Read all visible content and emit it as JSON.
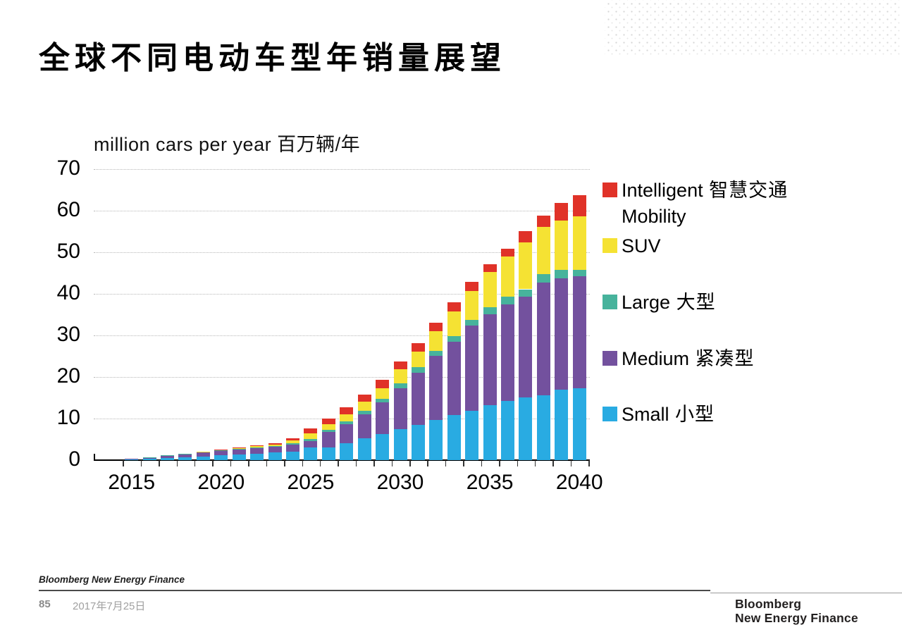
{
  "slide": {
    "title": "全球不同电动车型年销量展望"
  },
  "footer": {
    "brand": "Bloomberg New Energy Finance",
    "page_number": "85",
    "date": "2017年7月25日",
    "logo_line1": "Bloomberg",
    "logo_line2": "New Energy Finance"
  },
  "chart_data": {
    "type": "bar",
    "stacked": true,
    "title": "million cars per year 百万辆/年",
    "xlabel": "",
    "ylabel": "million cars per year 百万辆/年",
    "ylim": [
      0,
      70
    ],
    "ytick_interval": 10,
    "grid": "horizontal-dotted",
    "legend_position": "right",
    "x": [
      2015,
      2016,
      2017,
      2018,
      2019,
      2020,
      2021,
      2022,
      2023,
      2024,
      2025,
      2026,
      2027,
      2028,
      2029,
      2030,
      2031,
      2032,
      2033,
      2034,
      2035,
      2036,
      2037,
      2038,
      2039,
      2040
    ],
    "xticks_labeled": [
      2015,
      2020,
      2025,
      2030,
      2035,
      2040
    ],
    "series": [
      {
        "key": "small",
        "name": "Small 小型",
        "color": "#29ABE2",
        "values": [
          0.2,
          0.3,
          0.5,
          0.7,
          0.9,
          1.2,
          1.3,
          1.5,
          1.8,
          2.0,
          3.0,
          3.1,
          4.0,
          5.3,
          6.2,
          7.4,
          8.5,
          9.7,
          10.8,
          11.9,
          13.3,
          14.2,
          15.1,
          15.6,
          16.9,
          17.3
        ]
      },
      {
        "key": "medium",
        "name": "Medium 紧凑型",
        "color": "#73519E",
        "values": [
          0.2,
          0.35,
          0.6,
          0.8,
          1.0,
          1.0,
          1.2,
          1.4,
          1.4,
          1.7,
          1.6,
          3.65,
          4.6,
          5.7,
          7.7,
          9.9,
          12.6,
          15.4,
          17.7,
          20.4,
          21.8,
          23.3,
          24.2,
          27.1,
          26.9,
          26.9
        ]
      },
      {
        "key": "large",
        "name": "Large 大型",
        "color": "#47B39C",
        "values": [
          0,
          0.05,
          0.1,
          0.1,
          0.1,
          0.15,
          0.2,
          0.2,
          0.2,
          0.3,
          0.5,
          0.55,
          0.7,
          0.8,
          0.8,
          1.1,
          1.2,
          1.2,
          1.4,
          1.4,
          1.7,
          1.8,
          1.8,
          2.0,
          1.9,
          1.6
        ]
      },
      {
        "key": "suv",
        "name": "SUV",
        "color": "#F5E233",
        "values": [
          0,
          0,
          0,
          0,
          0.1,
          0.15,
          0.2,
          0.25,
          0.35,
          0.8,
          1.3,
          1.3,
          1.8,
          2.2,
          2.6,
          3.5,
          3.8,
          4.7,
          5.9,
          7.0,
          8.5,
          9.6,
          11.3,
          11.4,
          11.9,
          12.8
        ]
      },
      {
        "key": "im",
        "name": "Intelligent Mobility 智慧交通",
        "color": "#E03228",
        "values": [
          0,
          0,
          0,
          0,
          0,
          0.1,
          0.1,
          0.15,
          0.25,
          0.5,
          1.3,
          1.4,
          1.6,
          1.7,
          2.0,
          1.9,
          2.0,
          2.0,
          2.1,
          2.1,
          1.8,
          2.0,
          2.7,
          2.7,
          4.3,
          5.1
        ]
      }
    ],
    "legend": [
      {
        "series_key": "im",
        "color": "#E03228",
        "lines": [
          {
            "en": "Intelligent",
            "zh": "智慧交通"
          },
          {
            "en": "Mobility",
            "zh": ""
          }
        ]
      },
      {
        "series_key": "suv",
        "color": "#F5E233",
        "lines": [
          {
            "en": "SUV",
            "zh": ""
          }
        ]
      },
      {
        "series_key": "large",
        "color": "#47B39C",
        "lines": [
          {
            "en": "Large",
            "zh": "大型"
          }
        ]
      },
      {
        "series_key": "medium",
        "color": "#73519E",
        "lines": [
          {
            "en": "Medium",
            "zh": "紧凑型"
          }
        ]
      },
      {
        "series_key": "small",
        "color": "#29ABE2",
        "lines": [
          {
            "en": "Small",
            "zh": "小型"
          }
        ]
      }
    ]
  }
}
